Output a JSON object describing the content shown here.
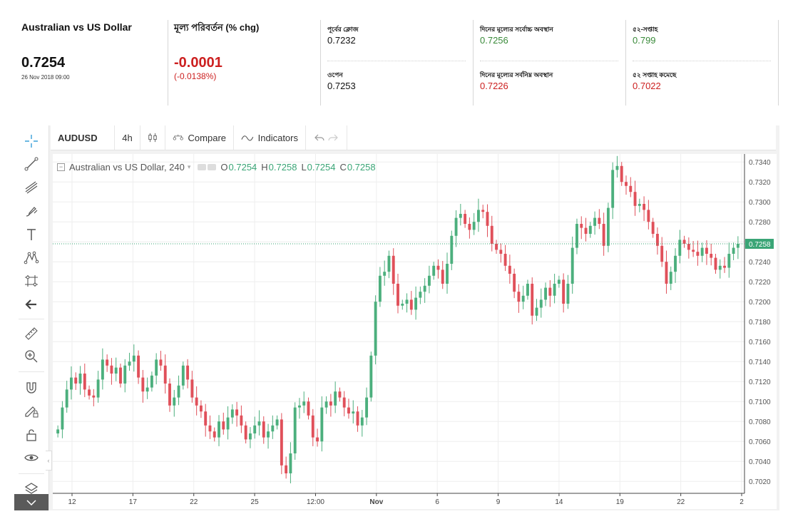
{
  "stats": {
    "title": "Australian vs US Dollar",
    "price": "0.7254",
    "timestamp": "26 Nov 2018 09:00",
    "change_label": "মূল্য পরিবর্তন (% chg)",
    "change_value": "-0.0001",
    "change_percent": "(-0.0138%)",
    "prev_close_label": "পূর্বের ক্লোজ",
    "prev_close": "0.7232",
    "open_label": "ওপেন",
    "open": "0.7253",
    "day_high_label": "দিনের মূল্যের সর্বোচ্চ অবস্থান",
    "day_high": "0.7256",
    "day_low_label": "দিনের মূল্যের সর্বনিম্ন অবস্থান",
    "day_low": "0.7226",
    "week52_high_label": "৫২-সপ্তাহ",
    "week52_high": "0.799",
    "week52_low_label": "৫২ সপ্তাহ কমেছে",
    "week52_low": "0.7022"
  },
  "toolbar": {
    "symbol": "AUDUSD",
    "interval": "4h",
    "compare": "Compare",
    "indicators": "Indicators"
  },
  "left_tools": [
    "crosshair-icon",
    "trend-line-icon",
    "fib-icon",
    "brush-icon",
    "text-icon",
    "pattern-icon",
    "prediction-icon",
    "back-arrow-icon",
    "ruler-icon",
    "zoom-in-icon",
    "magnet-icon",
    "lock-drawing-icon",
    "lock-icon",
    "eye-icon",
    "layers-icon"
  ],
  "legend": {
    "title": "Australian vs US Dollar, 240",
    "o_label": "O",
    "o": "0.7254",
    "h_label": "H",
    "h": "0.7258",
    "l_label": "L",
    "l": "0.7254",
    "c_label": "C",
    "c": "0.7258"
  },
  "colors": {
    "up": "#4caf7d",
    "down": "#e0505a",
    "last_price": "#3aa576",
    "grid": "#eeeeee"
  },
  "chart_data": {
    "type": "candlestick",
    "title": "Australian vs US Dollar, 240",
    "ylim": [
      0.7008,
      0.7348
    ],
    "y_ticks": [
      "0.7020",
      "0.7040",
      "0.7060",
      "0.7080",
      "0.7100",
      "0.7120",
      "0.7140",
      "0.7160",
      "0.7180",
      "0.7200",
      "0.7220",
      "0.7240",
      "0.7260",
      "0.7280",
      "0.7300",
      "0.7320",
      "0.7340"
    ],
    "x_ticks": [
      "12",
      "17",
      "22",
      "25",
      "12:00",
      "Nov",
      "6",
      "9",
      "14",
      "19",
      "22",
      "2"
    ],
    "last_price": "0.7258",
    "close_series": [
      0.7072,
      0.7094,
      0.7112,
      0.7124,
      0.7118,
      0.7128,
      0.7112,
      0.7106,
      0.7104,
      0.7122,
      0.7142,
      0.7136,
      0.7128,
      0.7134,
      0.7118,
      0.7136,
      0.714,
      0.7146,
      0.7124,
      0.711,
      0.7114,
      0.7126,
      0.7142,
      0.7136,
      0.7118,
      0.7096,
      0.7104,
      0.7116,
      0.7136,
      0.7122,
      0.7104,
      0.7096,
      0.709,
      0.7076,
      0.707,
      0.7064,
      0.708,
      0.7072,
      0.7084,
      0.7092,
      0.7086,
      0.7076,
      0.7062,
      0.7068,
      0.7076,
      0.708,
      0.7064,
      0.707,
      0.7076,
      0.7082,
      0.7036,
      0.7028,
      0.7048,
      0.7094,
      0.7096,
      0.71,
      0.7086,
      0.7064,
      0.706,
      0.7094,
      0.71,
      0.7096,
      0.711,
      0.7104,
      0.7094,
      0.7088,
      0.709,
      0.7076,
      0.7084,
      0.7104,
      0.7146,
      0.72,
      0.7226,
      0.723,
      0.7246,
      0.7218,
      0.7196,
      0.7198,
      0.7202,
      0.7192,
      0.7204,
      0.721,
      0.7216,
      0.7226,
      0.7236,
      0.7232,
      0.7218,
      0.7238,
      0.7266,
      0.7284,
      0.7288,
      0.7278,
      0.7272,
      0.728,
      0.7292,
      0.729,
      0.7276,
      0.7258,
      0.7252,
      0.7248,
      0.7236,
      0.7228,
      0.721,
      0.72,
      0.7206,
      0.7218,
      0.7186,
      0.7194,
      0.7202,
      0.7214,
      0.7206,
      0.7218,
      0.7222,
      0.7198,
      0.7218,
      0.7254,
      0.7278,
      0.7274,
      0.7268,
      0.7276,
      0.7284,
      0.7278,
      0.7256,
      0.7294,
      0.7332,
      0.7336,
      0.732,
      0.7316,
      0.731,
      0.7296,
      0.7298,
      0.7292,
      0.728,
      0.7268,
      0.7256,
      0.724,
      0.7218,
      0.723,
      0.7246,
      0.7262,
      0.7258,
      0.7252,
      0.725,
      0.7246,
      0.7254,
      0.7248,
      0.7244,
      0.7232,
      0.7236,
      0.7234,
      0.7248,
      0.7254,
      0.7258
    ]
  }
}
